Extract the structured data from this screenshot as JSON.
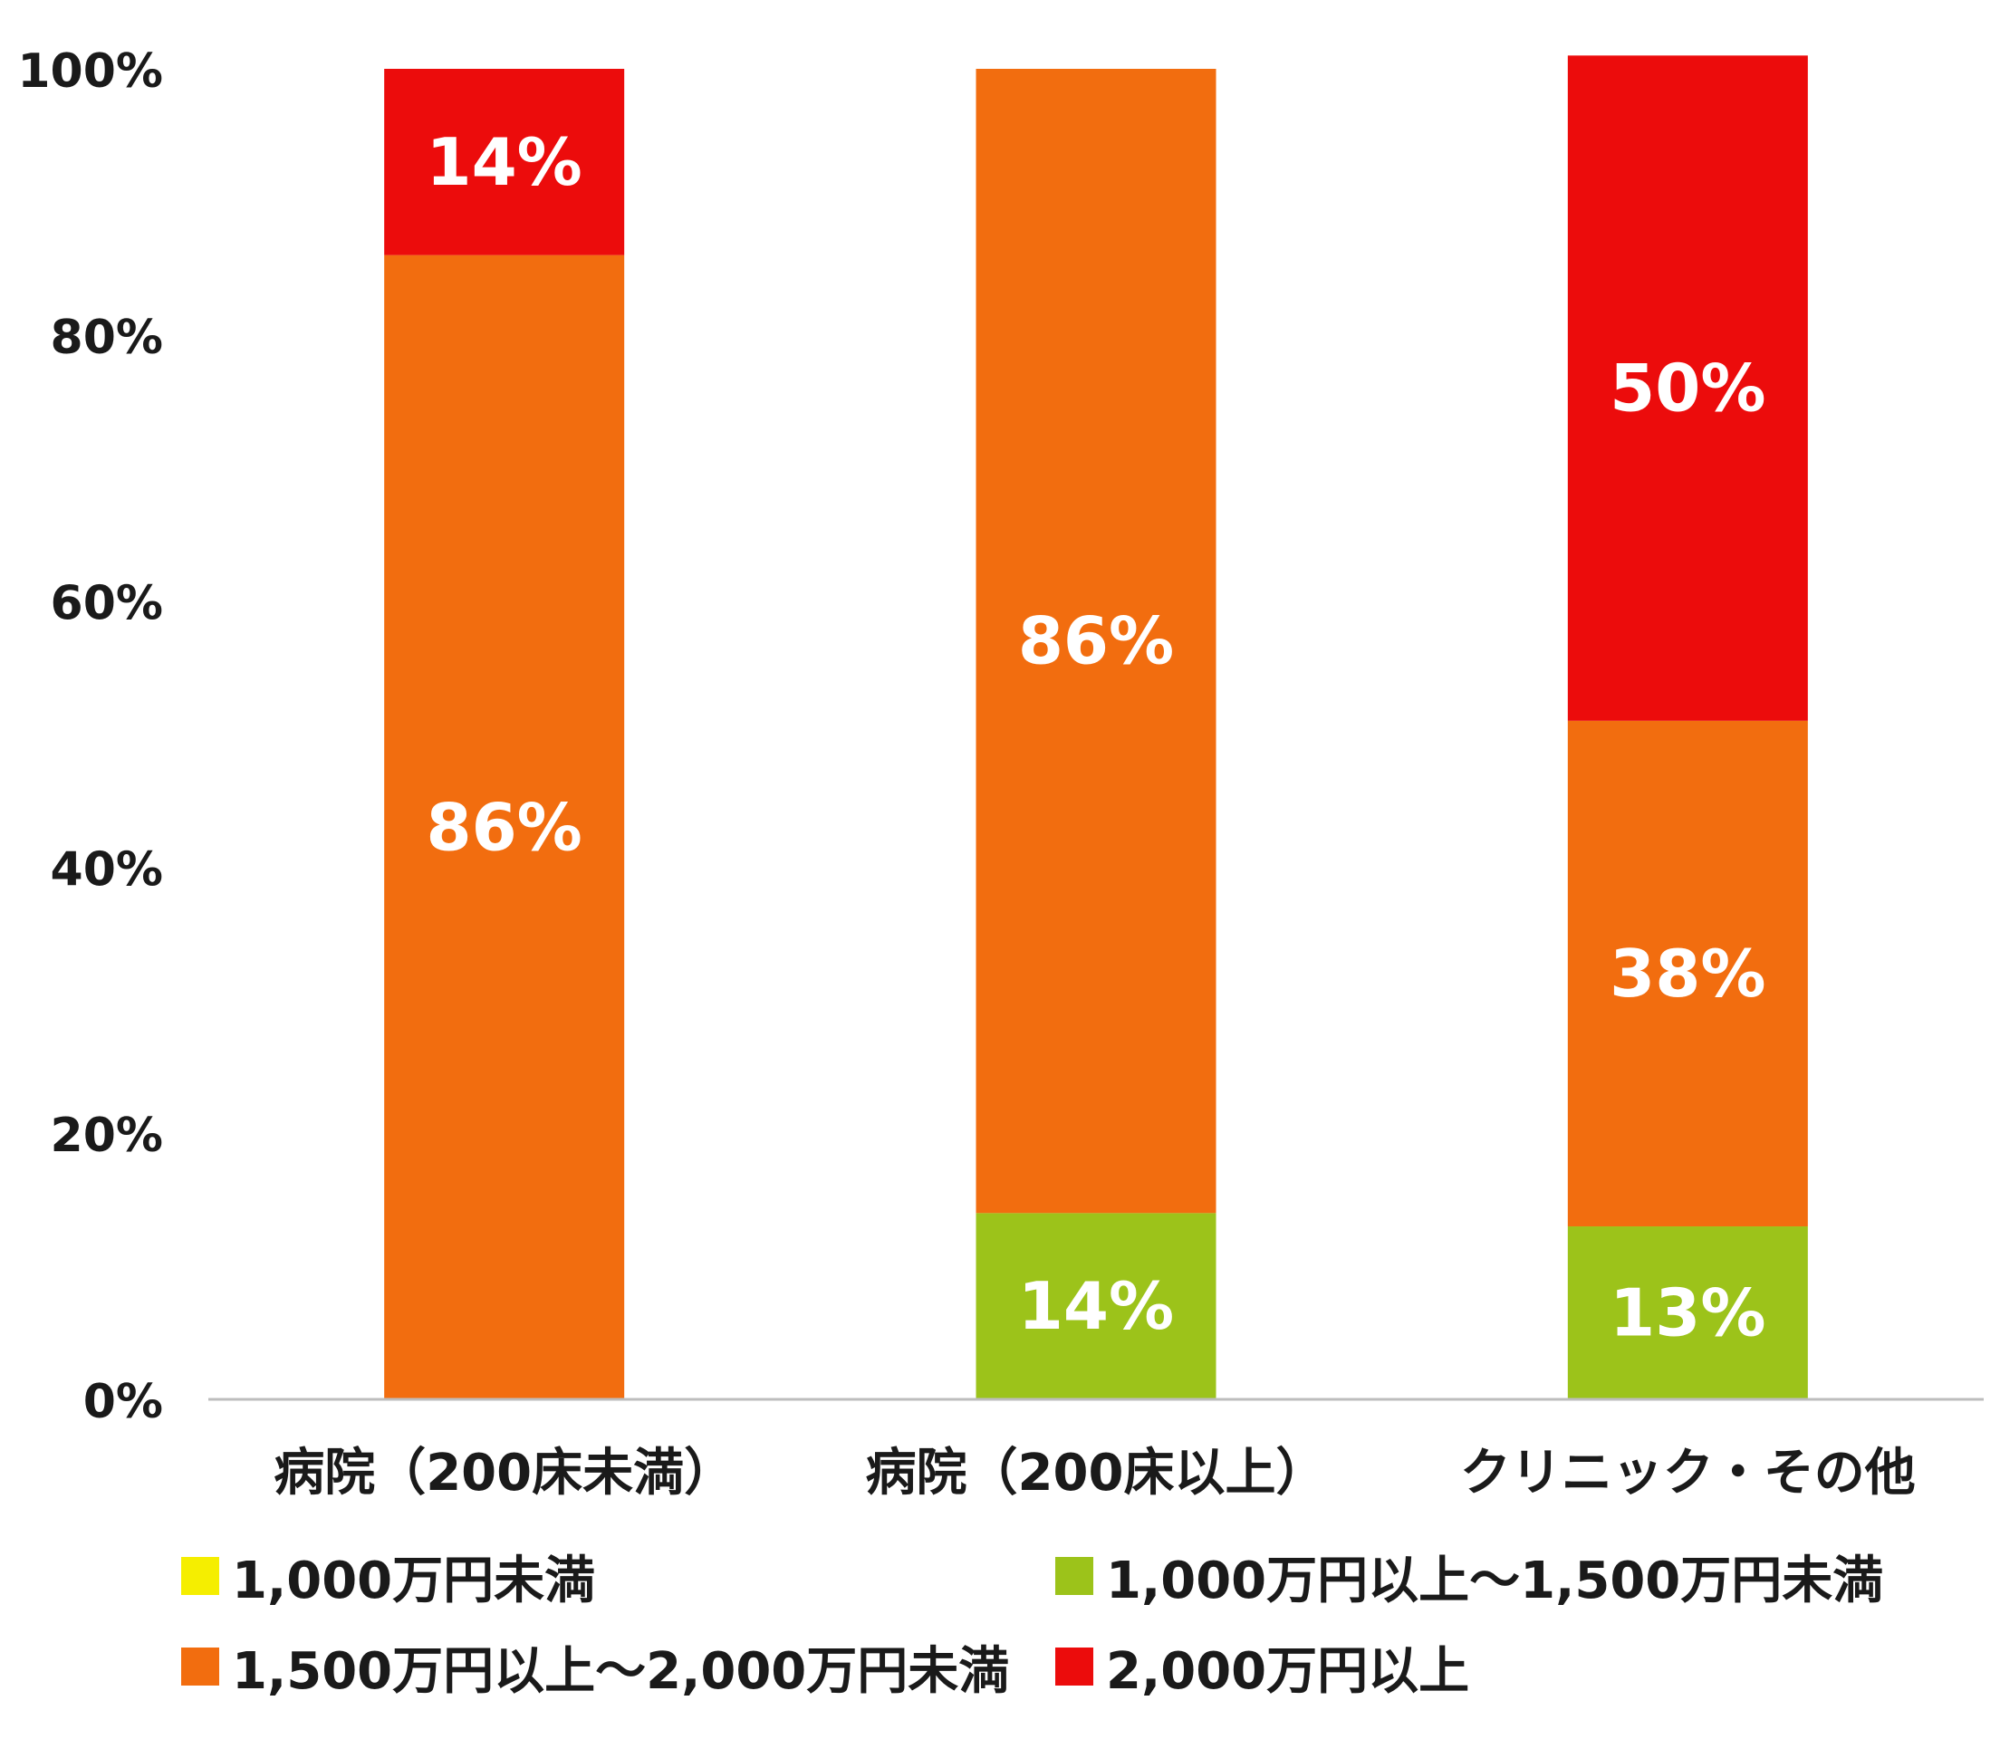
{
  "chart_data": {
    "type": "bar",
    "stacked": true,
    "categories": [
      "病院（200床未満）",
      "病院（200床以上）",
      "クリニック・その他"
    ],
    "series": [
      {
        "name": "1,000万円未満",
        "color": "#f5ee00",
        "values": [
          0,
          0,
          0
        ]
      },
      {
        "name": "1,000万円以上～1,500万円未満",
        "color": "#9cc31a",
        "values": [
          0,
          14,
          13
        ]
      },
      {
        "name": "1,500万円以上～2,000万円未満",
        "color": "#f26d0f",
        "values": [
          86,
          86,
          38
        ]
      },
      {
        "name": "2,000万円以上",
        "color": "#ec0c0c",
        "values": [
          14,
          0,
          50
        ]
      }
    ],
    "value_labels": [
      [
        "",
        "",
        "86%",
        "14%"
      ],
      [
        "",
        "14%",
        "86%",
        ""
      ],
      [
        "",
        "13%",
        "38%",
        "50%"
      ]
    ],
    "yticks": [
      "0%",
      "20%",
      "40%",
      "60%",
      "80%",
      "100%"
    ],
    "ylim": [
      0,
      100
    ],
    "legend_position": "bottom",
    "grid": false
  }
}
